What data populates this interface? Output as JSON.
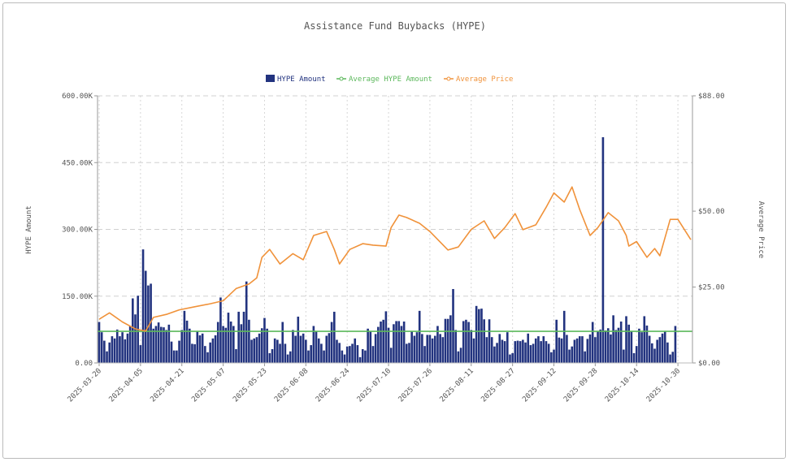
{
  "chart_data": {
    "type": "bar+line",
    "title": "Assistance Fund Buybacks (HYPE)",
    "legend": {
      "position": "top-center",
      "items": [
        "HYPE Amount",
        "Average HYPE Amount",
        "Average Price"
      ]
    },
    "colors": {
      "bars": "#22337f",
      "average_amount": "#5cb85c",
      "average_price": "#f0923a",
      "grid": "#cccccc",
      "text": "#555555"
    },
    "grid": true,
    "x": {
      "type": "date",
      "first_date": "2025-03-20",
      "last_date": "2025-11-04",
      "interval": "daily",
      "tick_labels": [
        "2025-03-20",
        "2025-04-05",
        "2025-04-21",
        "2025-05-07",
        "2025-05-23",
        "2025-06-08",
        "2025-06-24",
        "2025-07-10",
        "2025-07-26",
        "2025-08-11",
        "2025-08-27",
        "2025-09-12",
        "2025-09-28",
        "2025-10-14",
        "2025-10-30"
      ]
    },
    "y_left": {
      "label": "HYPE Amount",
      "range": [
        0,
        600000
      ],
      "tick_labels": [
        "0.00",
        "150.00K",
        "300.00K",
        "450.00K",
        "600.00K"
      ],
      "ticks": [
        0,
        150000,
        300000,
        450000,
        600000
      ]
    },
    "y_right": {
      "label": "Average Price",
      "range": [
        0,
        88
      ],
      "tick_labels": [
        "$0.00",
        "$25.00",
        "$50.00",
        "$88.00"
      ],
      "ticks": [
        0,
        25,
        50,
        88
      ]
    },
    "series": [
      {
        "name": "HYPE Amount",
        "type": "bar",
        "unit": "K HYPE per day (from 2025-03-20)",
        "values": [
          92,
          69,
          50,
          26,
          46,
          60,
          55,
          75,
          60,
          69,
          53,
          66,
          83,
          145,
          109,
          151,
          40,
          255,
          207,
          174,
          178,
          77,
          83,
          91,
          81,
          80,
          74,
          86,
          48,
          28,
          28,
          50,
          74,
          117,
          95,
          77,
          43,
          42,
          72,
          62,
          66,
          38,
          24,
          46,
          55,
          62,
          92,
          147,
          83,
          79,
          113,
          93,
          83,
          31,
          115,
          87,
          115,
          183,
          97,
          52,
          55,
          58,
          66,
          78,
          101,
          77,
          22,
          31,
          55,
          52,
          43,
          92,
          43,
          19,
          26,
          74,
          61,
          104,
          61,
          66,
          52,
          28,
          40,
          83,
          71,
          55,
          43,
          28,
          61,
          67,
          92,
          115,
          52,
          45,
          28,
          19,
          37,
          38,
          43,
          55,
          40,
          13,
          31,
          28,
          77,
          71,
          38,
          65,
          81,
          93,
          97,
          116,
          79,
          34,
          87,
          94,
          94,
          83,
          93,
          43,
          45,
          71,
          61,
          69,
          117,
          65,
          38,
          63,
          63,
          55,
          61,
          83,
          65,
          58,
          99,
          99,
          107,
          166,
          74,
          26,
          34,
          94,
          97,
          92,
          74,
          55,
          128,
          121,
          122,
          98,
          58,
          98,
          58,
          37,
          45,
          65,
          52,
          49,
          69,
          19,
          22,
          49,
          50,
          49,
          52,
          46,
          66,
          40,
          43,
          55,
          60,
          49,
          60,
          49,
          43,
          24,
          30,
          97,
          57,
          55,
          117,
          63,
          30,
          37,
          52,
          55,
          60,
          60,
          26,
          54,
          64,
          92,
          58,
          71,
          75,
          507,
          73,
          78,
          64,
          107,
          74,
          79,
          93,
          30,
          105,
          86,
          71,
          22,
          38,
          77,
          69,
          105,
          84,
          61,
          44,
          32,
          52,
          58,
          66,
          71,
          46,
          19,
          25,
          83
        ]
      },
      {
        "name": "Average HYPE Amount",
        "type": "line",
        "value": 71
      },
      {
        "name": "Average Price",
        "type": "line",
        "unit": "$",
        "points": [
          [
            "2025-03-20",
            14.4
          ],
          [
            "2025-03-24",
            16.5
          ],
          [
            "2025-03-29",
            13.5
          ],
          [
            "2025-04-03",
            11.2
          ],
          [
            "2025-04-07",
            10.5
          ],
          [
            "2025-04-10",
            15
          ],
          [
            "2025-04-15",
            16
          ],
          [
            "2025-04-20",
            17.5
          ],
          [
            "2025-04-26",
            18.5
          ],
          [
            "2025-05-02",
            19.5
          ],
          [
            "2025-05-07",
            20.5
          ],
          [
            "2025-05-12",
            24.5
          ],
          [
            "2025-05-17",
            26
          ],
          [
            "2025-05-20",
            28
          ],
          [
            "2025-05-22",
            34.8
          ],
          [
            "2025-05-25",
            37.4
          ],
          [
            "2025-05-29",
            32.6
          ],
          [
            "2025-06-03",
            36
          ],
          [
            "2025-06-07",
            34
          ],
          [
            "2025-06-11",
            42
          ],
          [
            "2025-06-16",
            43.3
          ],
          [
            "2025-06-19",
            37.4
          ],
          [
            "2025-06-21",
            32.6
          ],
          [
            "2025-06-25",
            37.4
          ],
          [
            "2025-06-30",
            39.3
          ],
          [
            "2025-07-04",
            38.8
          ],
          [
            "2025-07-09",
            38.5
          ],
          [
            "2025-07-11",
            44.6
          ],
          [
            "2025-07-14",
            48.7
          ],
          [
            "2025-07-17",
            47.9
          ],
          [
            "2025-07-22",
            46
          ],
          [
            "2025-07-26",
            43.3
          ],
          [
            "2025-08-02",
            37.2
          ],
          [
            "2025-08-06",
            38.2
          ],
          [
            "2025-08-11",
            44
          ],
          [
            "2025-08-16",
            46.8
          ],
          [
            "2025-08-20",
            41
          ],
          [
            "2025-08-24",
            44.6
          ],
          [
            "2025-08-28",
            49.2
          ],
          [
            "2025-08-31",
            43.9
          ],
          [
            "2025-09-05",
            45.5
          ],
          [
            "2025-09-09",
            51.3
          ],
          [
            "2025-09-12",
            56
          ],
          [
            "2025-09-16",
            53
          ],
          [
            "2025-09-19",
            58
          ],
          [
            "2025-09-22",
            50.5
          ],
          [
            "2025-09-26",
            42
          ],
          [
            "2025-09-29",
            44.6
          ],
          [
            "2025-10-03",
            49.5
          ],
          [
            "2025-10-07",
            46.8
          ],
          [
            "2025-10-10",
            42
          ],
          [
            "2025-10-11",
            38.5
          ],
          [
            "2025-10-14",
            40
          ],
          [
            "2025-10-18",
            34.8
          ],
          [
            "2025-10-21",
            37.7
          ],
          [
            "2025-10-23",
            35.3
          ],
          [
            "2025-10-27",
            47.3
          ],
          [
            "2025-10-30",
            47.3
          ],
          [
            "2025-11-04",
            40.6
          ]
        ]
      }
    ]
  }
}
